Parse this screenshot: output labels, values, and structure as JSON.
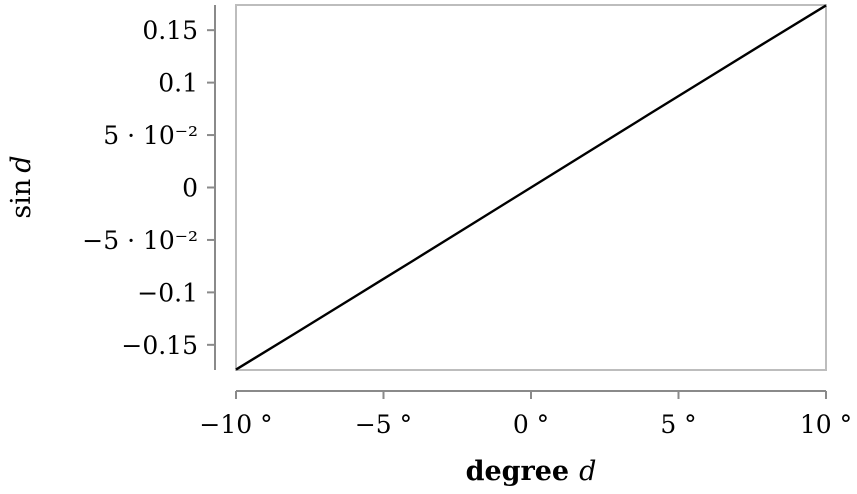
{
  "chart_data": {
    "type": "line",
    "xlabel_bold": "degree",
    "xlabel_var": "d",
    "ylabel_fn": "sin",
    "ylabel_var": "d",
    "xlim": [
      -10,
      10
    ],
    "ylim": [
      -0.174,
      0.174
    ],
    "x_ticks": [
      -10,
      -5,
      0,
      5,
      10
    ],
    "x_tick_labels": [
      "−10 °",
      "−5 °",
      "0 °",
      "5 °",
      "10 °"
    ],
    "y_ticks": [
      -0.15,
      -0.1,
      -0.05,
      0,
      0.05,
      0.1,
      0.15
    ],
    "y_tick_labels": [
      "−0.15",
      "−0.1",
      "−5 · 10⁻²",
      "0",
      "5 · 10⁻²",
      "0.1",
      "0.15"
    ],
    "grid": false,
    "series": [
      {
        "x": [
          -10,
          -8,
          -6,
          -4,
          -2,
          0,
          2,
          4,
          6,
          8,
          10
        ],
        "y": [
          -0.1736,
          -0.1392,
          -0.1045,
          -0.0698,
          -0.0349,
          0,
          0.0349,
          0.0698,
          0.1045,
          0.1392,
          0.1736
        ],
        "color": "#000000"
      }
    ]
  }
}
